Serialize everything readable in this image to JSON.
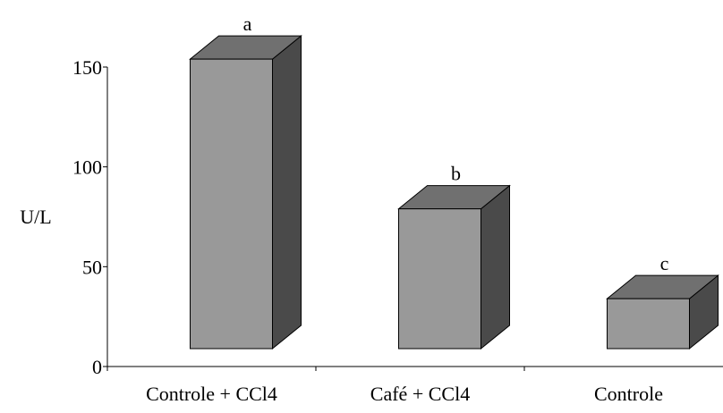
{
  "chart_data": {
    "type": "bar3d",
    "ylabel": "U/L",
    "categories": [
      "Controle + CCl4",
      "Café + CCl4",
      "Controle"
    ],
    "values": [
      145,
      70,
      25
    ],
    "annotations": [
      "a",
      "b",
      "c"
    ],
    "colors": {
      "front": "#999999",
      "top": "#707070",
      "side": "#4a4a4a"
    },
    "ylim": [
      0,
      150
    ],
    "yticks": [
      0,
      50,
      100,
      150
    ]
  }
}
